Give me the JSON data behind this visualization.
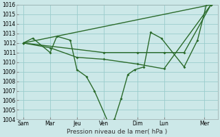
{
  "xlabel": "Pression niveau de la mer( hPa )",
  "ylim": [
    1004,
    1016
  ],
  "xlim": [
    0,
    15
  ],
  "yticks": [
    1004,
    1005,
    1006,
    1007,
    1008,
    1009,
    1010,
    1011,
    1012,
    1013,
    1014,
    1015,
    1016
  ],
  "xtick_labels": [
    "Sam",
    "Mar",
    "Jeu",
    "Ven",
    "Dim",
    "Lun",
    "Mer"
  ],
  "xtick_positions": [
    0.5,
    2.5,
    4.5,
    6.5,
    9.0,
    11.0,
    14.0
  ],
  "background_color": "#cce8e8",
  "grid_color": "#99cccc",
  "line_color": "#2a6a2a",
  "line1_x": [
    0.5,
    1.2,
    2.5,
    3.0,
    4.0,
    4.5,
    5.2,
    5.8,
    6.8,
    7.3,
    7.8,
    8.3,
    8.8,
    9.5,
    10.0,
    10.8,
    12.5,
    13.5,
    14.2,
    14.5
  ],
  "line1_y": [
    1012.0,
    1012.5,
    1011.0,
    1012.7,
    1012.3,
    1009.2,
    1008.5,
    1007.0,
    1003.8,
    1004.0,
    1006.2,
    1008.7,
    1009.2,
    1009.5,
    1013.1,
    1012.5,
    1009.5,
    1012.3,
    1016.2,
    1016.0
  ],
  "line2_x": [
    0.5,
    14.5
  ],
  "line2_y": [
    1012.0,
    1016.0
  ],
  "line3_x": [
    0.5,
    6.5,
    9.0,
    11.0,
    12.5,
    14.5
  ],
  "line3_y": [
    1012.0,
    1011.0,
    1011.0,
    1011.0,
    1011.0,
    1016.0
  ],
  "line4_x": [
    0.5,
    2.5,
    4.5,
    6.5,
    9.0,
    11.0,
    14.5
  ],
  "line4_y": [
    1012.0,
    1011.5,
    1010.5,
    1010.3,
    1009.8,
    1009.3,
    1016.0
  ],
  "figsize": [
    3.2,
    2.0
  ],
  "dpi": 100
}
